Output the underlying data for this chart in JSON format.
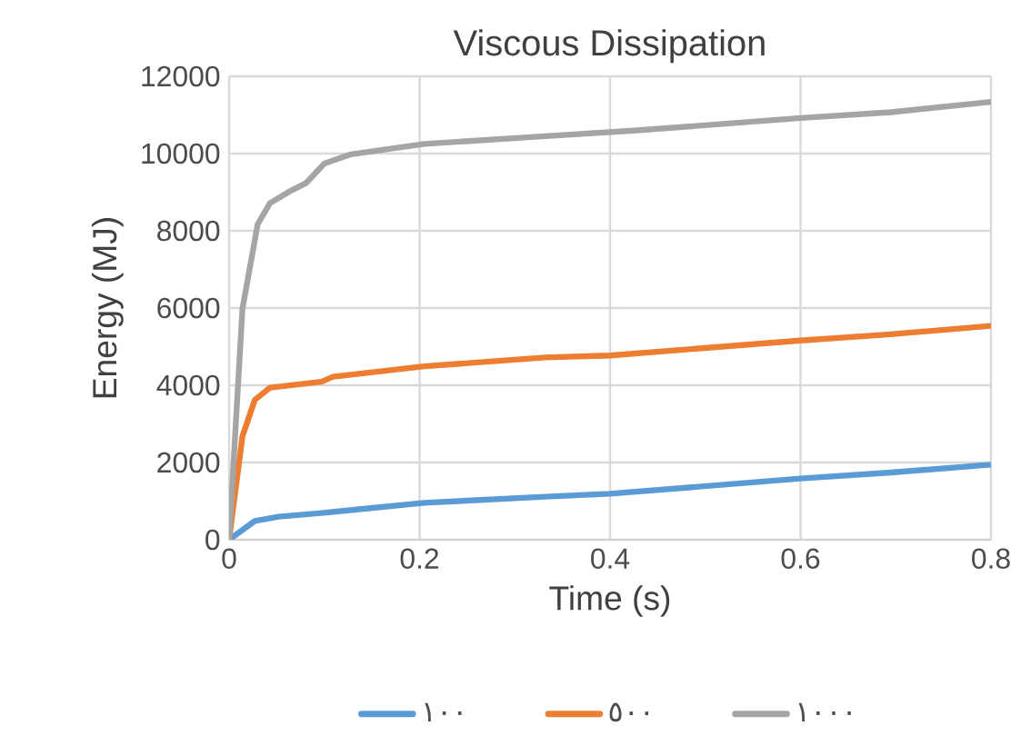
{
  "chart_data": {
    "type": "line",
    "title": "Viscous Dissipation",
    "xlabel": "Time (s)",
    "ylabel": "Energy (MJ)",
    "xlim": [
      0,
      0.8
    ],
    "xticks": [
      0,
      0.2,
      0.4,
      0.6,
      0.8
    ],
    "ylim": [
      0,
      12000
    ],
    "yticks": [
      0,
      2000,
      4000,
      6000,
      8000,
      10000,
      12000
    ],
    "grid": true,
    "legend": "bottom",
    "series": [
      {
        "name": "١٠٠",
        "color": "#5b9bd5",
        "x": [
          0,
          0.027,
          0.052,
          0.097,
          0.141,
          0.205,
          0.332,
          0.4,
          0.6,
          0.695,
          0.8
        ],
        "values": [
          0,
          485,
          596,
          692,
          800,
          955,
          1115,
          1190,
          1585,
          1741,
          1943
        ]
      },
      {
        "name": "٥٠٠",
        "color": "#ed7d31",
        "x": [
          0,
          0.014,
          0.027,
          0.043,
          0.097,
          0.109,
          0.205,
          0.332,
          0.4,
          0.6,
          0.695,
          0.8
        ],
        "values": [
          0,
          2680,
          3620,
          3940,
          4090,
          4220,
          4490,
          4720,
          4770,
          5160,
          5320,
          5540
        ]
      },
      {
        "name": "١٠٠٠",
        "color": "#a5a5a5",
        "x": [
          0,
          0.014,
          0.03,
          0.043,
          0.065,
          0.081,
          0.1,
          0.128,
          0.205,
          0.332,
          0.428,
          0.6,
          0.695,
          0.8
        ],
        "values": [
          0,
          5980,
          8170,
          8720,
          9040,
          9240,
          9740,
          9980,
          10250,
          10450,
          10600,
          10920,
          11070,
          11340
        ]
      }
    ]
  }
}
